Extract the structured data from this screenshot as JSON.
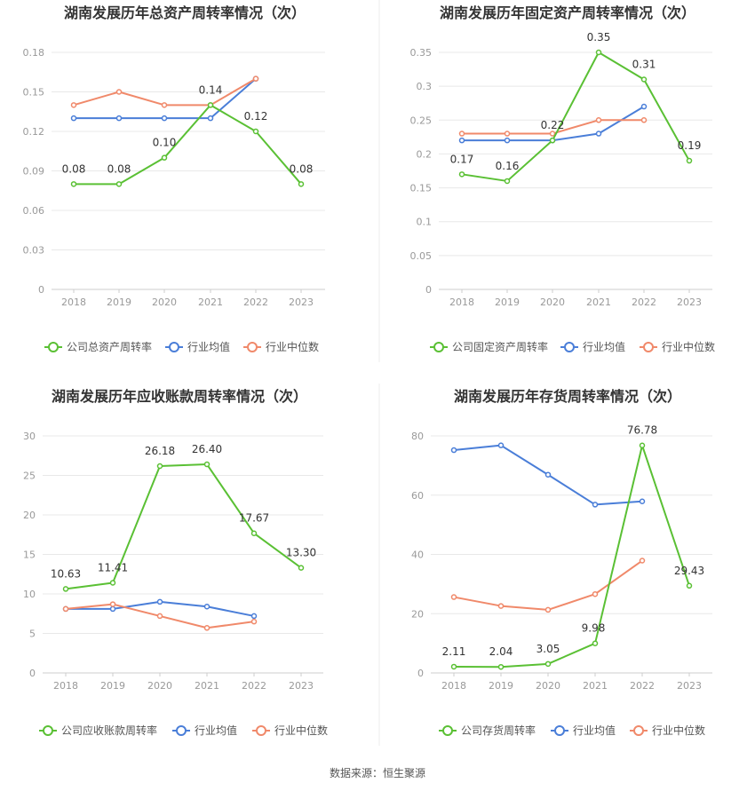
{
  "source_text": "数据来源：恒生聚源",
  "colors": {
    "company": "#5ac034",
    "avg": "#4a7ed8",
    "median": "#f0896a",
    "axis_text": "#999999",
    "grid": "#e8e8e8",
    "title": "#333333",
    "label": "#333333"
  },
  "chart_data": [
    {
      "type": "line",
      "title": "湖南发展历年总资产周转率情况（次）",
      "categories": [
        "2018",
        "2019",
        "2020",
        "2021",
        "2022",
        "2023"
      ],
      "ylim": [
        0,
        0.18
      ],
      "yticks": [
        "0",
        "0.03",
        "0.06",
        "0.09",
        "0.12",
        "0.15",
        "0.18"
      ],
      "grid": true,
      "legend_position": "bottom",
      "series": [
        {
          "name": "公司总资产周转率",
          "role": "company",
          "values": [
            0.08,
            0.08,
            0.1,
            0.14,
            0.12,
            0.08
          ],
          "labels": [
            "0.08",
            "0.08",
            "0.10",
            "0.14",
            "0.12",
            "0.08"
          ]
        },
        {
          "name": "行业均值",
          "role": "avg",
          "values": [
            0.13,
            0.13,
            0.13,
            0.13,
            0.16,
            null
          ]
        },
        {
          "name": "行业中位数",
          "role": "median",
          "values": [
            0.14,
            0.15,
            0.14,
            0.14,
            0.16,
            null
          ]
        }
      ]
    },
    {
      "type": "line",
      "title": "湖南发展历年固定资产周转率情况（次）",
      "categories": [
        "2018",
        "2019",
        "2020",
        "2021",
        "2022",
        "2023"
      ],
      "ylim": [
        0,
        0.35
      ],
      "yticks": [
        "0",
        "0.05",
        "0.1",
        "0.15",
        "0.2",
        "0.25",
        "0.3",
        "0.35"
      ],
      "grid": true,
      "legend_position": "bottom",
      "series": [
        {
          "name": "公司固定资产周转率",
          "role": "company",
          "values": [
            0.17,
            0.16,
            0.22,
            0.35,
            0.31,
            0.19
          ],
          "labels": [
            "0.17",
            "0.16",
            "0.22",
            "0.35",
            "0.31",
            "0.19"
          ]
        },
        {
          "name": "行业均值",
          "role": "avg",
          "values": [
            0.22,
            0.22,
            0.22,
            0.23,
            0.27,
            null
          ]
        },
        {
          "name": "行业中位数",
          "role": "median",
          "values": [
            0.23,
            0.23,
            0.23,
            0.25,
            0.25,
            null
          ]
        }
      ]
    },
    {
      "type": "line",
      "title": "湖南发展历年应收账款周转率情况（次）",
      "categories": [
        "2018",
        "2019",
        "2020",
        "2021",
        "2022",
        "2023"
      ],
      "ylim": [
        0,
        30
      ],
      "yticks": [
        "0",
        "5",
        "10",
        "15",
        "20",
        "25",
        "30"
      ],
      "grid": true,
      "legend_position": "bottom",
      "series": [
        {
          "name": "公司应收账款周转率",
          "role": "company",
          "values": [
            10.63,
            11.41,
            26.18,
            26.4,
            17.67,
            13.3
          ],
          "labels": [
            "10.63",
            "11.41",
            "26.18",
            "26.40",
            "17.67",
            "13.30"
          ]
        },
        {
          "name": "行业均值",
          "role": "avg",
          "values": [
            8.1,
            8.1,
            9.0,
            8.4,
            7.2,
            null
          ]
        },
        {
          "name": "行业中位数",
          "role": "median",
          "values": [
            8.1,
            8.7,
            7.2,
            5.7,
            6.5,
            null
          ]
        }
      ]
    },
    {
      "type": "line",
      "title": "湖南发展历年存货周转率情况（次）",
      "categories": [
        "2018",
        "2019",
        "2020",
        "2021",
        "2022",
        "2023"
      ],
      "ylim": [
        0,
        80
      ],
      "yticks": [
        "0",
        "20",
        "40",
        "60",
        "80"
      ],
      "grid": true,
      "legend_position": "bottom",
      "series": [
        {
          "name": "公司存货周转率",
          "role": "company",
          "values": [
            2.11,
            2.04,
            3.05,
            9.98,
            76.78,
            29.43
          ],
          "labels": [
            "2.11",
            "2.04",
            "3.05",
            "9.98",
            "76.78",
            "29.43"
          ]
        },
        {
          "name": "行业均值",
          "role": "avg",
          "values": [
            75.2,
            76.8,
            66.9,
            56.8,
            57.9,
            null
          ]
        },
        {
          "name": "行业中位数",
          "role": "median",
          "values": [
            25.6,
            22.6,
            21.3,
            26.6,
            37.9,
            null
          ]
        }
      ]
    }
  ]
}
